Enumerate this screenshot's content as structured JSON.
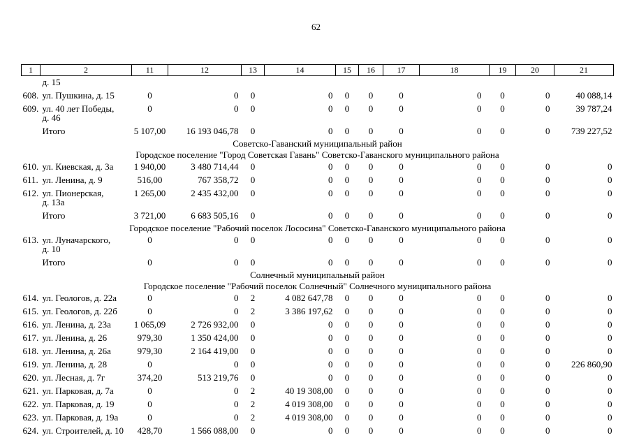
{
  "page_number": "62",
  "table": {
    "header": [
      "1",
      "2",
      "11",
      "12",
      "13",
      "14",
      "15",
      "16",
      "17",
      "18",
      "19",
      "20",
      "21"
    ],
    "rows": [
      {
        "type": "carryover",
        "address": "д. 15"
      },
      {
        "type": "data",
        "num": "608.",
        "address": "ул. Пушкина, д. 15",
        "values": [
          "0",
          "0",
          "0",
          "0",
          "0",
          "0",
          "0",
          "0",
          "0",
          "0",
          "40 088,14"
        ]
      },
      {
        "type": "data",
        "num": "609.",
        "address": "ул. 40 лет Победы,\nд. 46",
        "values": [
          "0",
          "0",
          "0",
          "0",
          "0",
          "0",
          "0",
          "0",
          "0",
          "0",
          "39 787,24"
        ]
      },
      {
        "type": "total",
        "label": "Итого",
        "values": [
          "5 107,00",
          "16 193 046,78",
          "0",
          "0",
          "0",
          "0",
          "0",
          "0",
          "0",
          "0",
          "739 227,52"
        ]
      },
      {
        "type": "section",
        "text": "Советско-Гаванский муниципальный район"
      },
      {
        "type": "section",
        "text": "Городское поселение \"Город Советская Гавань\" Советско-Гаванского муниципального района"
      },
      {
        "type": "data",
        "num": "610.",
        "address": "ул. Киевская, д. 3а",
        "values": [
          "1 940,00",
          "3 480 714,44",
          "0",
          "0",
          "0",
          "0",
          "0",
          "0",
          "0",
          "0",
          "0"
        ]
      },
      {
        "type": "data",
        "num": "611.",
        "address": "ул. Ленина, д. 9",
        "values": [
          "516,00",
          "767 358,72",
          "0",
          "0",
          "0",
          "0",
          "0",
          "0",
          "0",
          "0",
          "0"
        ]
      },
      {
        "type": "data",
        "num": "612.",
        "address": "ул. Пионерская,\nд. 13а",
        "values": [
          "1 265,00",
          "2 435 432,00",
          "0",
          "0",
          "0",
          "0",
          "0",
          "0",
          "0",
          "0",
          "0"
        ]
      },
      {
        "type": "total",
        "label": "Итого",
        "values": [
          "3 721,00",
          "6 683 505,16",
          "0",
          "0",
          "0",
          "0",
          "0",
          "0",
          "0",
          "0",
          "0"
        ]
      },
      {
        "type": "section",
        "text": "Городское поселение \"Рабочий поселок Лососина\" Советско-Гаванского муниципального района"
      },
      {
        "type": "data",
        "num": "613.",
        "address": "ул. Луначарского,\nд. 10",
        "values": [
          "0",
          "0",
          "0",
          "0",
          "0",
          "0",
          "0",
          "0",
          "0",
          "0",
          "0"
        ]
      },
      {
        "type": "total",
        "label": "Итого",
        "values": [
          "0",
          "0",
          "0",
          "0",
          "0",
          "0",
          "0",
          "0",
          "0",
          "0",
          "0"
        ]
      },
      {
        "type": "section",
        "text": "Солнечный муниципальный район"
      },
      {
        "type": "section",
        "text": "Городское поселение \"Рабочий поселок Солнечный\" Солнечного муниципального района"
      },
      {
        "type": "data",
        "num": "614.",
        "address": "ул. Геологов, д. 22а",
        "values": [
          "0",
          "0",
          "2",
          "4 082 647,78",
          "0",
          "0",
          "0",
          "0",
          "0",
          "0",
          "0"
        ]
      },
      {
        "type": "data",
        "num": "615.",
        "address": "ул. Геологов, д. 22б",
        "values": [
          "0",
          "0",
          "2",
          "3 386 197,62",
          "0",
          "0",
          "0",
          "0",
          "0",
          "0",
          "0"
        ]
      },
      {
        "type": "data",
        "num": "616.",
        "address": "ул. Ленина, д. 23а",
        "values": [
          "1 065,09",
          "2 726 932,00",
          "0",
          "0",
          "0",
          "0",
          "0",
          "0",
          "0",
          "0",
          "0"
        ]
      },
      {
        "type": "data",
        "num": "617.",
        "address": "ул. Ленина, д. 26",
        "values": [
          "979,30",
          "1 350 424,00",
          "0",
          "0",
          "0",
          "0",
          "0",
          "0",
          "0",
          "0",
          "0"
        ]
      },
      {
        "type": "data",
        "num": "618.",
        "address": "ул. Ленина, д. 26а",
        "values": [
          "979,30",
          "2 164 419,00",
          "0",
          "0",
          "0",
          "0",
          "0",
          "0",
          "0",
          "0",
          "0"
        ]
      },
      {
        "type": "data",
        "num": "619.",
        "address": "ул. Ленина, д. 28",
        "values": [
          "0",
          "0",
          "0",
          "0",
          "0",
          "0",
          "0",
          "0",
          "0",
          "0",
          "226 860,90"
        ]
      },
      {
        "type": "data",
        "num": "620.",
        "address": "ул. Лесная, д. 7г",
        "values": [
          "374,20",
          "513 219,76",
          "0",
          "0",
          "0",
          "0",
          "0",
          "0",
          "0",
          "0",
          "0"
        ]
      },
      {
        "type": "data",
        "num": "621.",
        "address": "ул. Парковая, д. 7а",
        "values": [
          "0",
          "0",
          "2",
          "40 19 308,00",
          "0",
          "0",
          "0",
          "0",
          "0",
          "0",
          "0"
        ]
      },
      {
        "type": "data",
        "num": "622.",
        "address": "ул. Парковая, д. 19",
        "values": [
          "0",
          "0",
          "2",
          "4 019 308,00",
          "0",
          "0",
          "0",
          "0",
          "0",
          "0",
          "0"
        ]
      },
      {
        "type": "data",
        "num": "623.",
        "address": "ул. Парковая, д. 19а",
        "values": [
          "0",
          "0",
          "2",
          "4 019 308,00",
          "0",
          "0",
          "0",
          "0",
          "0",
          "0",
          "0"
        ]
      },
      {
        "type": "data",
        "num": "624.",
        "address": "ул. Строителей, д. 10",
        "values": [
          "428,70",
          "1 566 088,00",
          "0",
          "0",
          "0",
          "0",
          "0",
          "0",
          "0",
          "0",
          "0"
        ]
      }
    ]
  }
}
